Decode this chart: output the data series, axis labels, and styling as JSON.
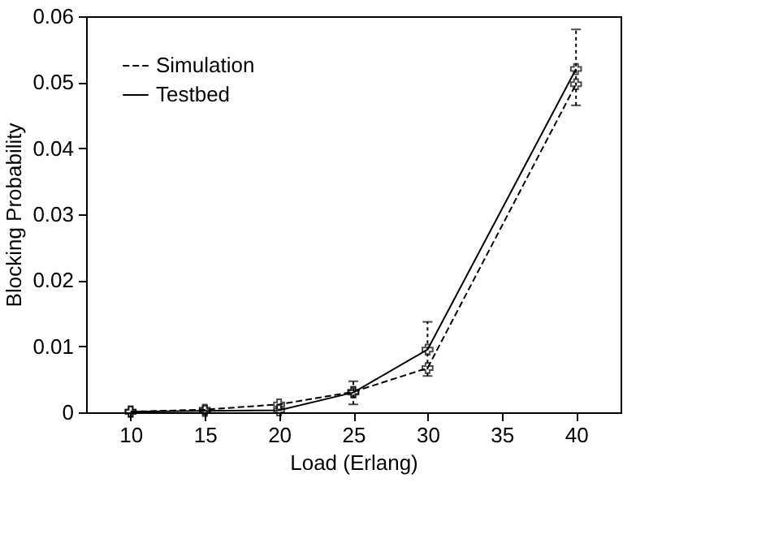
{
  "chart_data": {
    "type": "line",
    "xlabel": "Load (Erlang)",
    "ylabel": "Blocking Probability",
    "x": [
      10,
      15,
      20,
      25,
      30,
      40
    ],
    "series": [
      {
        "name": "Simulation",
        "color": "#000000",
        "line_style": "dashed",
        "marker": "cross",
        "values": [
          0.0001,
          0.0004,
          0.0012,
          0.0031,
          0.0067,
          0.0497
        ],
        "errors": [
          null,
          null,
          null,
          [
            0.0012,
            0.0047
          ],
          [
            0.0055,
            0.0137
          ],
          [
            0.0465,
            0.058
          ]
        ]
      },
      {
        "name": "Testbed",
        "color": "#000000",
        "line_style": "solid",
        "marker": "cross",
        "values": [
          0.0001,
          0.0002,
          0.0003,
          0.003,
          0.0095,
          0.052
        ]
      }
    ],
    "xlim": [
      7,
      43
    ],
    "xticks": [
      10,
      15,
      20,
      25,
      30,
      35,
      40
    ],
    "ylim": [
      0,
      0.06
    ],
    "yticks": [
      0,
      0.01,
      0.02,
      0.03,
      0.04,
      0.05,
      0.06
    ],
    "grid": false,
    "legend": "top left"
  }
}
